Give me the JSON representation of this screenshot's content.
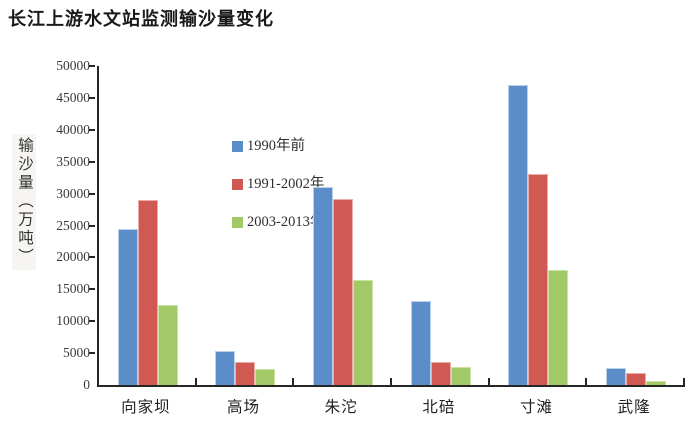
{
  "title": {
    "text": "长江上游水文站监测输沙量变化"
  },
  "chart_data": {
    "type": "bar",
    "title": "长江上游水文站监测输沙量变化",
    "xlabel": "",
    "ylabel": "输沙量（万吨）",
    "categories": [
      "向家坝",
      "高场",
      "朱沱",
      "北碚",
      "寸滩",
      "武隆"
    ],
    "series": [
      {
        "name": "1990年前",
        "color": "#5b8ec9",
        "edge": "#b9d1ea",
        "values": [
          24500,
          5400,
          31000,
          13100,
          47000,
          2600
        ]
      },
      {
        "name": "1991-2002年",
        "color": "#d15954",
        "edge": "#ecaca8",
        "values": [
          29000,
          3600,
          29200,
          3600,
          33000,
          1900
        ]
      },
      {
        "name": "2003-2013年",
        "color": "#a2c968",
        "edge": "#cde3a4",
        "values": [
          12500,
          2500,
          16500,
          2800,
          18000,
          600
        ]
      }
    ],
    "ylim": [
      0,
      50000
    ],
    "yticks": [
      0,
      5000,
      10000,
      15000,
      20000,
      25000,
      30000,
      35000,
      40000,
      45000,
      50000
    ],
    "grid": false,
    "legend_position": "upper-left-inside",
    "axis_color": "#262626",
    "text_color": "#3a3a3a",
    "background": "#ffffff"
  }
}
